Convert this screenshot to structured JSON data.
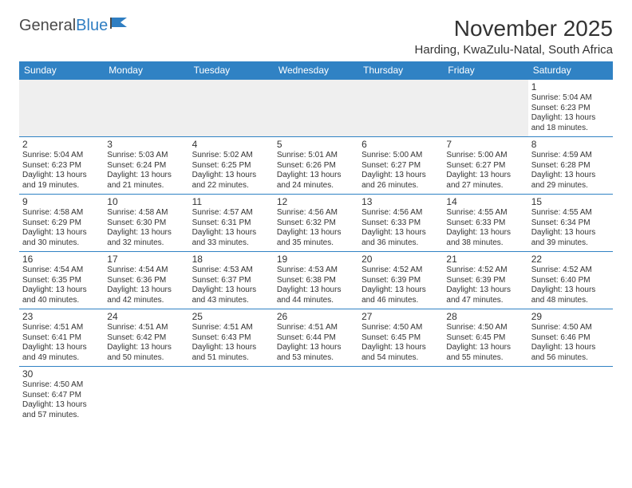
{
  "logo": {
    "text1": "General",
    "text2": "Blue"
  },
  "title": "November 2025",
  "location": "Harding, KwaZulu-Natal, South Africa",
  "colors": {
    "header_bg": "#3082c4",
    "header_text": "#ffffff",
    "cell_border": "#3082c4",
    "text": "#333333",
    "blank_bg": "#efefef",
    "logo_gray": "#4a4a4a",
    "logo_blue": "#2f7ec2"
  },
  "daynames": [
    "Sunday",
    "Monday",
    "Tuesday",
    "Wednesday",
    "Thursday",
    "Friday",
    "Saturday"
  ],
  "weeks": [
    [
      null,
      null,
      null,
      null,
      null,
      null,
      {
        "n": "1",
        "sr": "5:04 AM",
        "ss": "6:23 PM",
        "dl": "13 hours and 18 minutes."
      }
    ],
    [
      {
        "n": "2",
        "sr": "5:04 AM",
        "ss": "6:23 PM",
        "dl": "13 hours and 19 minutes."
      },
      {
        "n": "3",
        "sr": "5:03 AM",
        "ss": "6:24 PM",
        "dl": "13 hours and 21 minutes."
      },
      {
        "n": "4",
        "sr": "5:02 AM",
        "ss": "6:25 PM",
        "dl": "13 hours and 22 minutes."
      },
      {
        "n": "5",
        "sr": "5:01 AM",
        "ss": "6:26 PM",
        "dl": "13 hours and 24 minutes."
      },
      {
        "n": "6",
        "sr": "5:00 AM",
        "ss": "6:27 PM",
        "dl": "13 hours and 26 minutes."
      },
      {
        "n": "7",
        "sr": "5:00 AM",
        "ss": "6:27 PM",
        "dl": "13 hours and 27 minutes."
      },
      {
        "n": "8",
        "sr": "4:59 AM",
        "ss": "6:28 PM",
        "dl": "13 hours and 29 minutes."
      }
    ],
    [
      {
        "n": "9",
        "sr": "4:58 AM",
        "ss": "6:29 PM",
        "dl": "13 hours and 30 minutes."
      },
      {
        "n": "10",
        "sr": "4:58 AM",
        "ss": "6:30 PM",
        "dl": "13 hours and 32 minutes."
      },
      {
        "n": "11",
        "sr": "4:57 AM",
        "ss": "6:31 PM",
        "dl": "13 hours and 33 minutes."
      },
      {
        "n": "12",
        "sr": "4:56 AM",
        "ss": "6:32 PM",
        "dl": "13 hours and 35 minutes."
      },
      {
        "n": "13",
        "sr": "4:56 AM",
        "ss": "6:33 PM",
        "dl": "13 hours and 36 minutes."
      },
      {
        "n": "14",
        "sr": "4:55 AM",
        "ss": "6:33 PM",
        "dl": "13 hours and 38 minutes."
      },
      {
        "n": "15",
        "sr": "4:55 AM",
        "ss": "6:34 PM",
        "dl": "13 hours and 39 minutes."
      }
    ],
    [
      {
        "n": "16",
        "sr": "4:54 AM",
        "ss": "6:35 PM",
        "dl": "13 hours and 40 minutes."
      },
      {
        "n": "17",
        "sr": "4:54 AM",
        "ss": "6:36 PM",
        "dl": "13 hours and 42 minutes."
      },
      {
        "n": "18",
        "sr": "4:53 AM",
        "ss": "6:37 PM",
        "dl": "13 hours and 43 minutes."
      },
      {
        "n": "19",
        "sr": "4:53 AM",
        "ss": "6:38 PM",
        "dl": "13 hours and 44 minutes."
      },
      {
        "n": "20",
        "sr": "4:52 AM",
        "ss": "6:39 PM",
        "dl": "13 hours and 46 minutes."
      },
      {
        "n": "21",
        "sr": "4:52 AM",
        "ss": "6:39 PM",
        "dl": "13 hours and 47 minutes."
      },
      {
        "n": "22",
        "sr": "4:52 AM",
        "ss": "6:40 PM",
        "dl": "13 hours and 48 minutes."
      }
    ],
    [
      {
        "n": "23",
        "sr": "4:51 AM",
        "ss": "6:41 PM",
        "dl": "13 hours and 49 minutes."
      },
      {
        "n": "24",
        "sr": "4:51 AM",
        "ss": "6:42 PM",
        "dl": "13 hours and 50 minutes."
      },
      {
        "n": "25",
        "sr": "4:51 AM",
        "ss": "6:43 PM",
        "dl": "13 hours and 51 minutes."
      },
      {
        "n": "26",
        "sr": "4:51 AM",
        "ss": "6:44 PM",
        "dl": "13 hours and 53 minutes."
      },
      {
        "n": "27",
        "sr": "4:50 AM",
        "ss": "6:45 PM",
        "dl": "13 hours and 54 minutes."
      },
      {
        "n": "28",
        "sr": "4:50 AM",
        "ss": "6:45 PM",
        "dl": "13 hours and 55 minutes."
      },
      {
        "n": "29",
        "sr": "4:50 AM",
        "ss": "6:46 PM",
        "dl": "13 hours and 56 minutes."
      }
    ],
    [
      {
        "n": "30",
        "sr": "4:50 AM",
        "ss": "6:47 PM",
        "dl": "13 hours and 57 minutes."
      },
      null,
      null,
      null,
      null,
      null,
      null
    ]
  ],
  "labels": {
    "sunrise": "Sunrise:",
    "sunset": "Sunset:",
    "daylight": "Daylight:"
  }
}
